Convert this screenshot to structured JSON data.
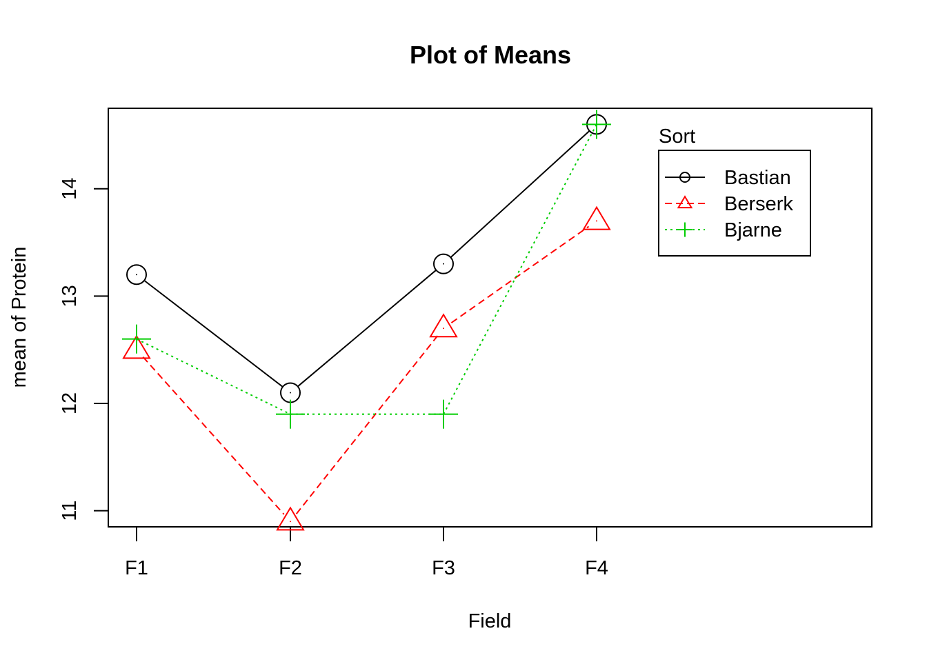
{
  "chart_data": {
    "type": "line",
    "title": "Plot of Means",
    "xlabel": "Field",
    "ylabel": "mean of Protein",
    "categories": [
      "F1",
      "F2",
      "F3",
      "F4"
    ],
    "y_ticks": [
      "11",
      "12",
      "13",
      "14"
    ],
    "ylim": [
      10.85,
      14.75
    ],
    "grid": false,
    "legend": {
      "title": "Sort",
      "placement": "top-right"
    },
    "series": [
      {
        "name": "Bastian",
        "values": [
          13.2,
          12.1,
          13.3,
          14.6
        ],
        "color": "#000000",
        "line": "solid",
        "marker": "circle"
      },
      {
        "name": "Berserk",
        "values": [
          12.5,
          10.9,
          12.7,
          13.7
        ],
        "color": "#ff0000",
        "line": "dashed",
        "marker": "triangle"
      },
      {
        "name": "Bjarne",
        "values": [
          12.6,
          11.9,
          11.9,
          14.6
        ],
        "color": "#00cd00",
        "line": "dotted",
        "marker": "plus"
      }
    ]
  }
}
